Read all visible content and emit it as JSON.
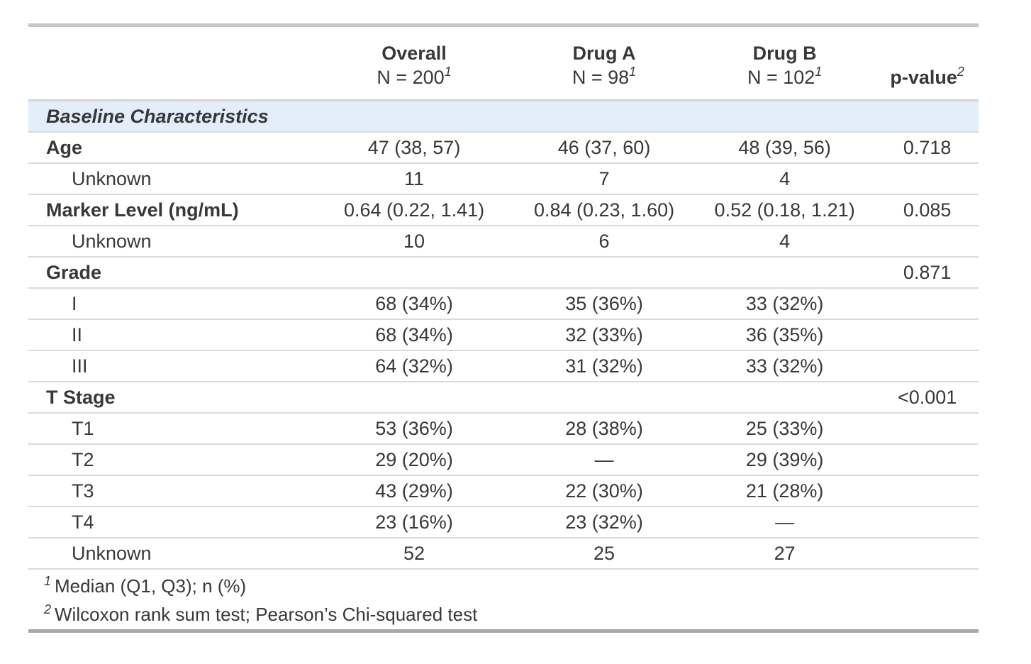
{
  "colors": {
    "section_bg": "#e3eefa",
    "text": "#383838",
    "row_border": "#dadada",
    "header_border": "#d4d4d4",
    "table_top_border": "#c6c6c6",
    "table_bottom_border": "#a9a9a9"
  },
  "header": {
    "stub": "",
    "columns": [
      {
        "label": "Overall",
        "n": "N = 200",
        "footnote_mark": "1"
      },
      {
        "label": "Drug A",
        "n": "N = 98",
        "footnote_mark": "1"
      },
      {
        "label": "Drug B",
        "n": "N = 102",
        "footnote_mark": "1"
      }
    ],
    "pvalue": {
      "label": "p-value",
      "footnote_mark": "2"
    }
  },
  "section_header": "Baseline Characteristics",
  "rows": [
    {
      "label": "Age",
      "style": "variable",
      "cells": [
        "47 (38, 57)",
        "46 (37, 60)",
        "48 (39, 56)"
      ],
      "p": "0.718"
    },
    {
      "label": "Unknown",
      "style": "level",
      "cells": [
        "11",
        "7",
        "4"
      ],
      "p": ""
    },
    {
      "label": "Marker Level (ng/mL)",
      "style": "variable",
      "cells": [
        "0.64 (0.22, 1.41)",
        "0.84 (0.23, 1.60)",
        "0.52 (0.18, 1.21)"
      ],
      "p": "0.085"
    },
    {
      "label": "Unknown",
      "style": "level",
      "cells": [
        "10",
        "6",
        "4"
      ],
      "p": ""
    },
    {
      "label": "Grade",
      "style": "variable",
      "cells": [
        "",
        "",
        ""
      ],
      "p": "0.871"
    },
    {
      "label": "I",
      "style": "level",
      "cells": [
        "68 (34%)",
        "35 (36%)",
        "33 (32%)"
      ],
      "p": ""
    },
    {
      "label": "II",
      "style": "level",
      "cells": [
        "68 (34%)",
        "32 (33%)",
        "36 (35%)"
      ],
      "p": ""
    },
    {
      "label": "III",
      "style": "level",
      "cells": [
        "64 (32%)",
        "31 (32%)",
        "33 (32%)"
      ],
      "p": ""
    },
    {
      "label": "T Stage",
      "style": "variable",
      "cells": [
        "",
        "",
        ""
      ],
      "p": "<0.001"
    },
    {
      "label": "T1",
      "style": "level",
      "cells": [
        "53 (36%)",
        "28 (38%)",
        "25 (33%)"
      ],
      "p": ""
    },
    {
      "label": "T2",
      "style": "level",
      "cells": [
        "29 (20%)",
        "—",
        "29 (39%)"
      ],
      "p": ""
    },
    {
      "label": "T3",
      "style": "level",
      "cells": [
        "43 (29%)",
        "22 (30%)",
        "21 (28%)"
      ],
      "p": ""
    },
    {
      "label": "T4",
      "style": "level",
      "cells": [
        "23 (16%)",
        "23 (32%)",
        "—"
      ],
      "p": ""
    },
    {
      "label": "Unknown",
      "style": "level",
      "cells": [
        "52",
        "25",
        "27"
      ],
      "p": ""
    }
  ],
  "footnotes": [
    {
      "mark": "1",
      "text": "Median (Q1, Q3); n (%)"
    },
    {
      "mark": "2",
      "text": "Wilcoxon rank sum test; Pearson’s Chi-squared test"
    }
  ],
  "chart_data": {
    "type": "table",
    "title": "Baseline Characteristics",
    "columns": [
      "Characteristic",
      "Overall N = 200",
      "Drug A N = 98",
      "Drug B N = 102",
      "p-value"
    ],
    "rows": [
      [
        "Age",
        "47 (38, 57)",
        "46 (37, 60)",
        "48 (39, 56)",
        "0.718"
      ],
      [
        "Unknown",
        "11",
        "7",
        "4",
        ""
      ],
      [
        "Marker Level (ng/mL)",
        "0.64 (0.22, 1.41)",
        "0.84 (0.23, 1.60)",
        "0.52 (0.18, 1.21)",
        "0.085"
      ],
      [
        "Unknown",
        "10",
        "6",
        "4",
        ""
      ],
      [
        "Grade",
        "",
        "",
        "",
        "0.871"
      ],
      [
        "I",
        "68 (34%)",
        "35 (36%)",
        "33 (32%)",
        ""
      ],
      [
        "II",
        "68 (34%)",
        "32 (33%)",
        "36 (35%)",
        ""
      ],
      [
        "III",
        "64 (32%)",
        "31 (32%)",
        "33 (32%)",
        ""
      ],
      [
        "T Stage",
        "",
        "",
        "",
        "<0.001"
      ],
      [
        "T1",
        "53 (36%)",
        "28 (38%)",
        "25 (33%)",
        ""
      ],
      [
        "T2",
        "29 (20%)",
        "—",
        "29 (39%)",
        ""
      ],
      [
        "T3",
        "43 (29%)",
        "22 (30%)",
        "21 (28%)",
        ""
      ],
      [
        "T4",
        "23 (16%)",
        "23 (32%)",
        "—",
        ""
      ],
      [
        "Unknown",
        "52",
        "25",
        "27",
        ""
      ]
    ],
    "footnotes": [
      "1 Median (Q1, Q3); n (%)",
      "2 Wilcoxon rank sum test; Pearson's Chi-squared test"
    ]
  }
}
